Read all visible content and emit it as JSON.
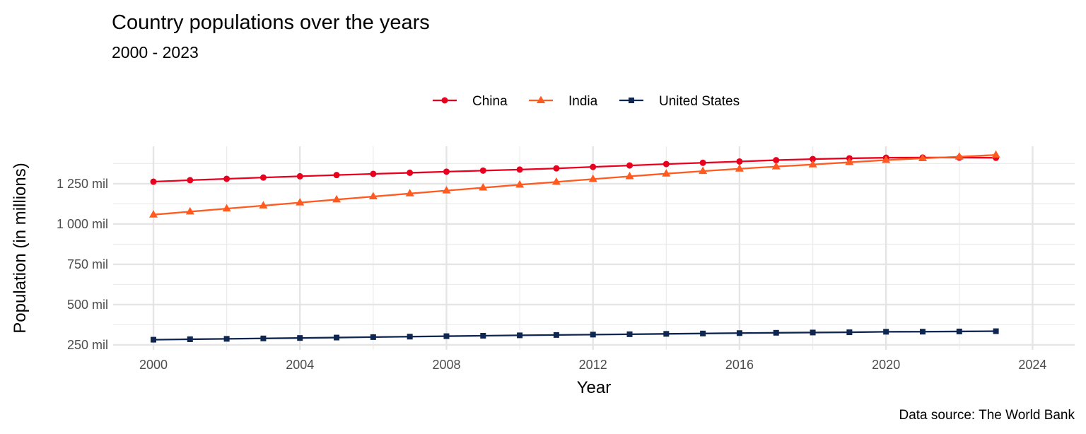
{
  "chart_data": {
    "type": "line",
    "title": "Country populations over the years",
    "subtitle": "2000 - 2023",
    "xlabel": "Year",
    "ylabel": "Population (in millions)",
    "caption": "Data source: The World Bank",
    "legend_position": "top",
    "grid": true,
    "xlim": [
      1998.9,
      2025.15
    ],
    "ylim": [
      219,
      1482
    ],
    "x_ticks": [
      2000,
      2004,
      2008,
      2012,
      2016,
      2020,
      2024
    ],
    "x_tick_labels": [
      "2000",
      "2004",
      "2008",
      "2012",
      "2016",
      "2020",
      "2024"
    ],
    "y_ticks": [
      250,
      500,
      750,
      1000,
      1250
    ],
    "y_tick_labels": [
      "250 mil",
      "500 mil",
      "750 mil",
      "1 000 mil",
      "1 250 mil"
    ],
    "x": [
      2000,
      2001,
      2002,
      2003,
      2004,
      2005,
      2006,
      2007,
      2008,
      2009,
      2010,
      2011,
      2012,
      2013,
      2014,
      2015,
      2016,
      2017,
      2018,
      2019,
      2020,
      2021,
      2022,
      2023
    ],
    "series": [
      {
        "name": "China",
        "color": "#E8001F",
        "marker": "circle",
        "values": [
          1262.6,
          1271.9,
          1280.4,
          1288.4,
          1296.1,
          1303.7,
          1311.0,
          1317.9,
          1324.7,
          1331.3,
          1337.7,
          1345.0,
          1354.2,
          1363.2,
          1371.9,
          1379.9,
          1387.8,
          1396.2,
          1402.8,
          1407.7,
          1411.1,
          1412.4,
          1412.2,
          1410.7
        ]
      },
      {
        "name": "India",
        "color": "#FF5A1F",
        "marker": "triangle",
        "values": [
          1057.9,
          1076.7,
          1095.4,
          1114.1,
          1132.9,
          1151.7,
          1170.4,
          1189.0,
          1207.3,
          1225.2,
          1243.5,
          1261.2,
          1278.7,
          1295.8,
          1312.3,
          1328.0,
          1342.7,
          1356.6,
          1369.0,
          1383.1,
          1396.4,
          1407.6,
          1417.2,
          1428.6
        ]
      },
      {
        "name": "United States",
        "color": "#0F2650",
        "marker": "square",
        "values": [
          282.2,
          285.0,
          287.6,
          290.1,
          292.8,
          295.5,
          298.4,
          301.2,
          304.1,
          306.8,
          309.3,
          311.6,
          313.9,
          316.1,
          318.4,
          320.7,
          323.1,
          325.1,
          326.8,
          328.3,
          331.5,
          332.0,
          333.3,
          334.9
        ]
      }
    ]
  }
}
